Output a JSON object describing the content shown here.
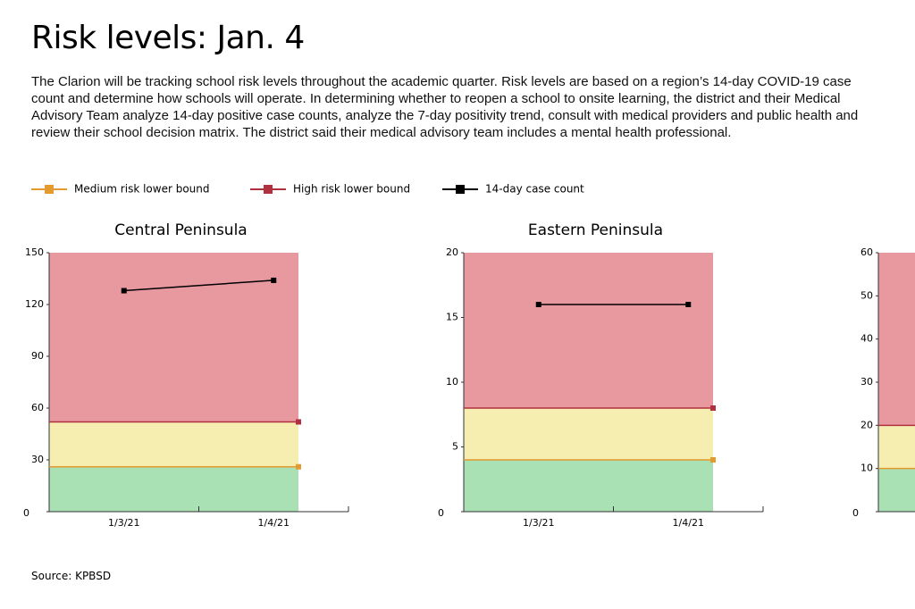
{
  "title": "Risk levels: Jan. 4",
  "intro": "The Clarion will be tracking school risk levels throughout the academic quarter. Risk levels are based on a region’s 14-day COVID-19 case count and determine how schools will operate. In determining whether to reopen a school to onsite learning, the district and their Medical Advisory Team analyze 14-day positive case counts, analyze the 7-day positivity trend, consult with medical providers and public health and review their school decision matrix. The district said their medical advisory team includes a mental health professional.",
  "source": "Source: KPBSD",
  "chart_data": [
    {
      "type": "line",
      "title": "Central Peninsula",
      "categories": [
        "1/3/21",
        "1/4/21"
      ],
      "ylim": [
        0,
        150
      ],
      "yticks": [
        0,
        30,
        60,
        90,
        120,
        150
      ],
      "series": [
        {
          "name": "Medium risk lower bound",
          "color": "#e39a2e",
          "values": [
            26,
            26
          ]
        },
        {
          "name": "High risk lower bound",
          "color": "#b03040",
          "values": [
            52,
            52
          ]
        },
        {
          "name": "14-day case count",
          "color": "#000000",
          "values": [
            128,
            134
          ]
        }
      ]
    },
    {
      "type": "line",
      "title": "Eastern Peninsula",
      "categories": [
        "1/3/21",
        "1/4/21"
      ],
      "ylim": [
        0,
        20
      ],
      "yticks": [
        0,
        5,
        10,
        15,
        20
      ],
      "series": [
        {
          "name": "Medium risk lower bound",
          "color": "#e39a2e",
          "values": [
            4,
            4
          ]
        },
        {
          "name": "High risk lower bound",
          "color": "#b03040",
          "values": [
            8,
            8
          ]
        },
        {
          "name": "14-day case count",
          "color": "#000000",
          "values": [
            16,
            16
          ]
        }
      ]
    },
    {
      "type": "line",
      "ylim": [
        0,
        60
      ],
      "yticks": [
        0,
        10,
        20,
        30,
        40,
        50,
        60
      ],
      "series": [
        {
          "name": "Medium risk lower bound",
          "color": "#e39a2e",
          "values": [
            10,
            10
          ]
        },
        {
          "name": "High risk lower bound",
          "color": "#b03040",
          "values": [
            20,
            20
          ]
        }
      ]
    }
  ]
}
